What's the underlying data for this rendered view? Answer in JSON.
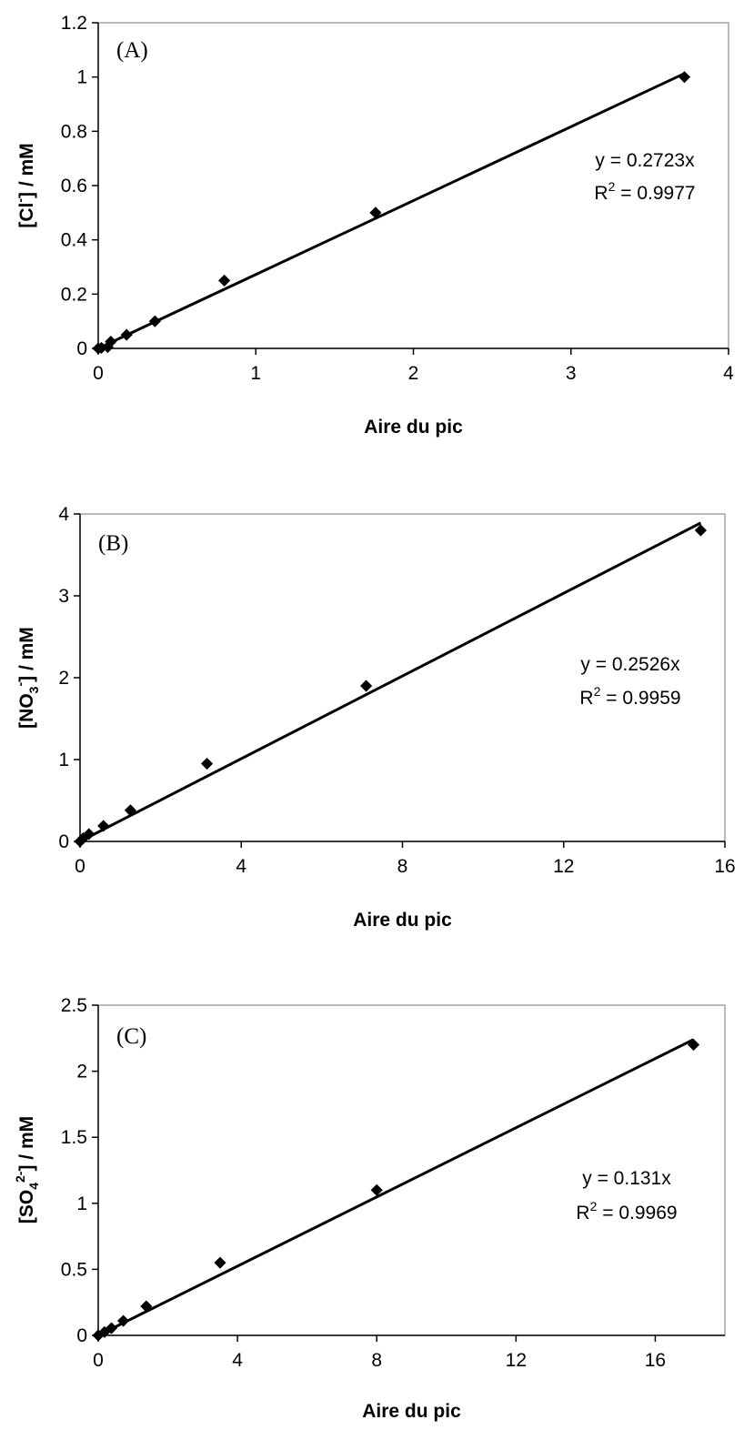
{
  "chart_data": [
    {
      "type": "scatter",
      "panel_label": "(A)",
      "xlabel": "Aire du pic",
      "ylabel": {
        "main": "[Cl",
        "sup": "-",
        "tail": "] / mM"
      },
      "xlim": [
        0,
        4
      ],
      "ylim": [
        0,
        1.2
      ],
      "xticks": [
        0,
        1,
        2,
        3,
        4
      ],
      "yticks": [
        0,
        0.2,
        0.4,
        0.6,
        0.8,
        1,
        1.2
      ],
      "grid": false,
      "series": [
        {
          "x": [
            0.0,
            0.02,
            0.06,
            0.08,
            0.18,
            0.36,
            0.8,
            1.76,
            3.72
          ],
          "y": [
            0.0,
            0.002,
            0.005,
            0.025,
            0.05,
            0.1,
            0.25,
            0.5,
            1.0
          ],
          "marker": "diamond",
          "color": "#000000"
        }
      ],
      "trendline": {
        "slope": 0.2723,
        "x_end": 3.72
      },
      "equation": "y = 0.2723x",
      "r2": {
        "main": "R",
        "sup": "2",
        "tail": " = 0.9977"
      }
    },
    {
      "type": "scatter",
      "panel_label": "(B)",
      "xlabel": "Aire du pic",
      "ylabel": {
        "main": "[NO",
        "sub": "3",
        "sup": "-",
        "tail": "] / mM"
      },
      "xlim": [
        0,
        16
      ],
      "ylim": [
        0,
        4
      ],
      "xticks": [
        0,
        4,
        8,
        12,
        16
      ],
      "yticks": [
        0,
        1,
        2,
        3,
        4
      ],
      "grid": false,
      "series": [
        {
          "x": [
            0.0,
            0.08,
            0.22,
            0.58,
            1.25,
            3.15,
            7.1,
            15.4
          ],
          "y": [
            0.0,
            0.04,
            0.09,
            0.19,
            0.38,
            0.95,
            1.9,
            3.8
          ],
          "marker": "diamond",
          "color": "#000000"
        }
      ],
      "trendline": {
        "slope": 0.2526,
        "x_end": 15.4
      },
      "equation": "y = 0.2526x",
      "r2": {
        "main": "R",
        "sup": "2",
        "tail": " = 0.9959"
      }
    },
    {
      "type": "scatter",
      "panel_label": "(C)",
      "xlabel": "Aire du pic",
      "ylabel": {
        "main": "[SO",
        "sub": "4",
        "sup": "2-",
        "tail": "] / mM"
      },
      "xlim": [
        0,
        18
      ],
      "ylim": [
        0,
        2.5
      ],
      "xticks": [
        0,
        4,
        8,
        12,
        16
      ],
      "yticks": [
        0,
        0.5,
        1,
        1.5,
        2,
        2.5
      ],
      "grid": false,
      "series": [
        {
          "x": [
            0.0,
            0.18,
            0.38,
            0.72,
            1.38,
            3.5,
            8.0,
            17.1
          ],
          "y": [
            0.0,
            0.025,
            0.055,
            0.11,
            0.22,
            0.55,
            1.1,
            2.2
          ],
          "marker": "diamond",
          "color": "#000000"
        }
      ],
      "trendline": {
        "slope": 0.131,
        "x_end": 17.1
      },
      "equation": "y = 0.131x",
      "r2": {
        "main": "R",
        "sup": "2",
        "tail": " = 0.9969"
      }
    }
  ]
}
